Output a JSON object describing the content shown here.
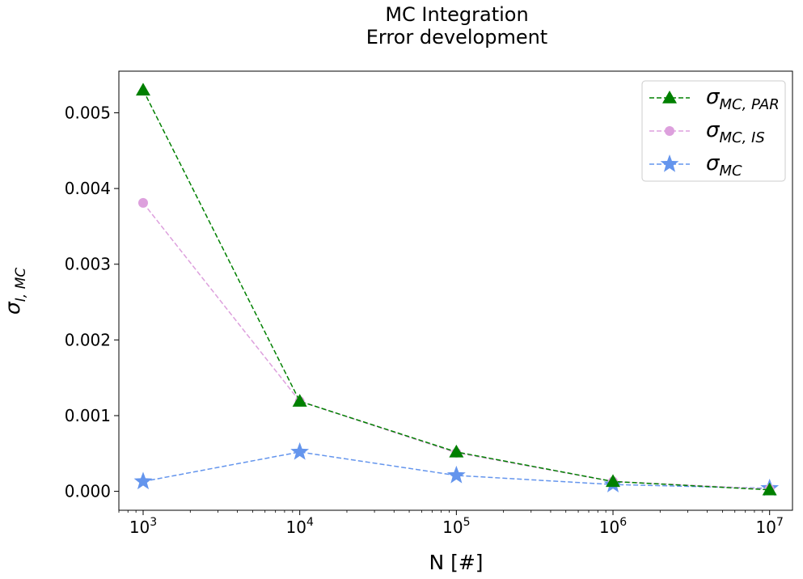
{
  "chart_data": {
    "type": "line",
    "title": [
      "MC Integration",
      "Error development"
    ],
    "xlabel": "N [#]",
    "ylabel": "σI, MC",
    "ylabel_main": "σ",
    "ylabel_sub": "I, MC",
    "xscale": "log",
    "xlim": [
      700,
      14000000
    ],
    "ylim": [
      -0.00025,
      0.00555
    ],
    "x": [
      1000,
      10000,
      100000,
      1000000,
      10000000
    ],
    "x_tick_labels": [
      {
        "base": "10",
        "exp": "3"
      },
      {
        "base": "10",
        "exp": "4"
      },
      {
        "base": "10",
        "exp": "5"
      },
      {
        "base": "10",
        "exp": "6"
      },
      {
        "base": "10",
        "exp": "7"
      }
    ],
    "y_ticks": [
      0.0,
      0.001,
      0.002,
      0.003,
      0.004,
      0.005
    ],
    "y_tick_labels": [
      "0.000",
      "0.001",
      "0.002",
      "0.003",
      "0.004",
      "0.005"
    ],
    "grid": false,
    "legend_position": "top-right",
    "series": [
      {
        "name": "σMC, PAR",
        "name_main": "σ",
        "name_sub": "MC, PAR",
        "values": [
          0.0053,
          0.00119,
          0.00052,
          0.00013,
          2e-05
        ],
        "color": "#008000",
        "marker": "triangle",
        "linestyle": "dashed"
      },
      {
        "name": "σMC, IS",
        "name_main": "σ",
        "name_sub": "MC, IS",
        "values": [
          0.00381,
          0.00119,
          0.00051,
          0.00013,
          3e-05
        ],
        "color": "#dda0dd",
        "marker": "circle",
        "linestyle": "dashed"
      },
      {
        "name": "σMC",
        "name_main": "σ",
        "name_sub": "MC",
        "values": [
          0.00013,
          0.00052,
          0.00021,
          9e-05,
          4e-05
        ],
        "color": "#6495ed",
        "marker": "star",
        "linestyle": "dashed"
      }
    ]
  }
}
